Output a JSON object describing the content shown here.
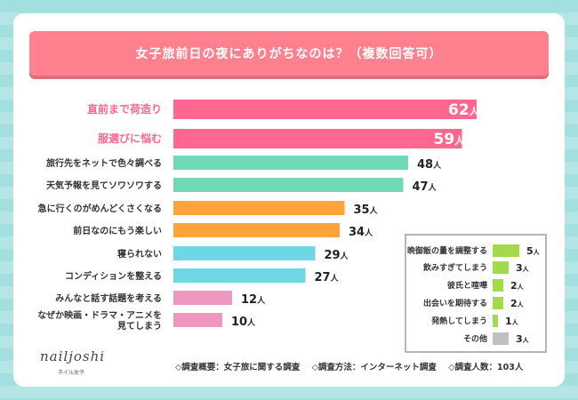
{
  "title": "女子旅前日の夜にありがちなのは？（複数回答可）",
  "chart_data": {
    "type": "bar",
    "orientation": "horizontal",
    "title": "女子旅前日の夜にありがちなのは？（複数回答可）",
    "unit": "人",
    "categories": [
      "直前まで荷造り",
      "服選びに悩む",
      "旅行先をネットで色々調べる",
      "天気予報を見てソワソワする",
      "急に行くのがめんどくさくなる",
      "前日なのにもう楽しい",
      "寝られない",
      "コンディションを整える",
      "みんなと話す話題を考える",
      "なぜか映画・ドラマ・アニメを|見てしまう"
    ],
    "values": [
      62,
      59,
      48,
      47,
      35,
      34,
      29,
      27,
      12,
      10
    ],
    "colors": [
      "#ff6690",
      "#ff6690",
      "#72d9b8",
      "#72d9b8",
      "#ffa43b",
      "#ffa43b",
      "#6dd8e3",
      "#6dd8e3",
      "#ef97c0",
      "#ef97c0"
    ],
    "highlighted": [
      true,
      true,
      false,
      false,
      false,
      false,
      false,
      false,
      false,
      false
    ],
    "inset": {
      "categories": [
        "晩御飯の量を調整する",
        "飲みすぎてしまう",
        "彼氏と喧嘩",
        "出会いを期待する",
        "発熱してしまう",
        "その他"
      ],
      "values": [
        5,
        3,
        2,
        2,
        1,
        3
      ],
      "colors": [
        "#a3d94c",
        "#a3d94c",
        "#a3d94c",
        "#a3d94c",
        "#a3d94c",
        "#c0c0c0"
      ]
    }
  },
  "logo": {
    "text": "nailjoshi",
    "sub": "ネイル女子"
  },
  "footer": {
    "overview": "◇調査概要：女子旅に関する調査",
    "method": "◇調査方法：インターネット調査",
    "count": "◇調査人数：103人"
  }
}
